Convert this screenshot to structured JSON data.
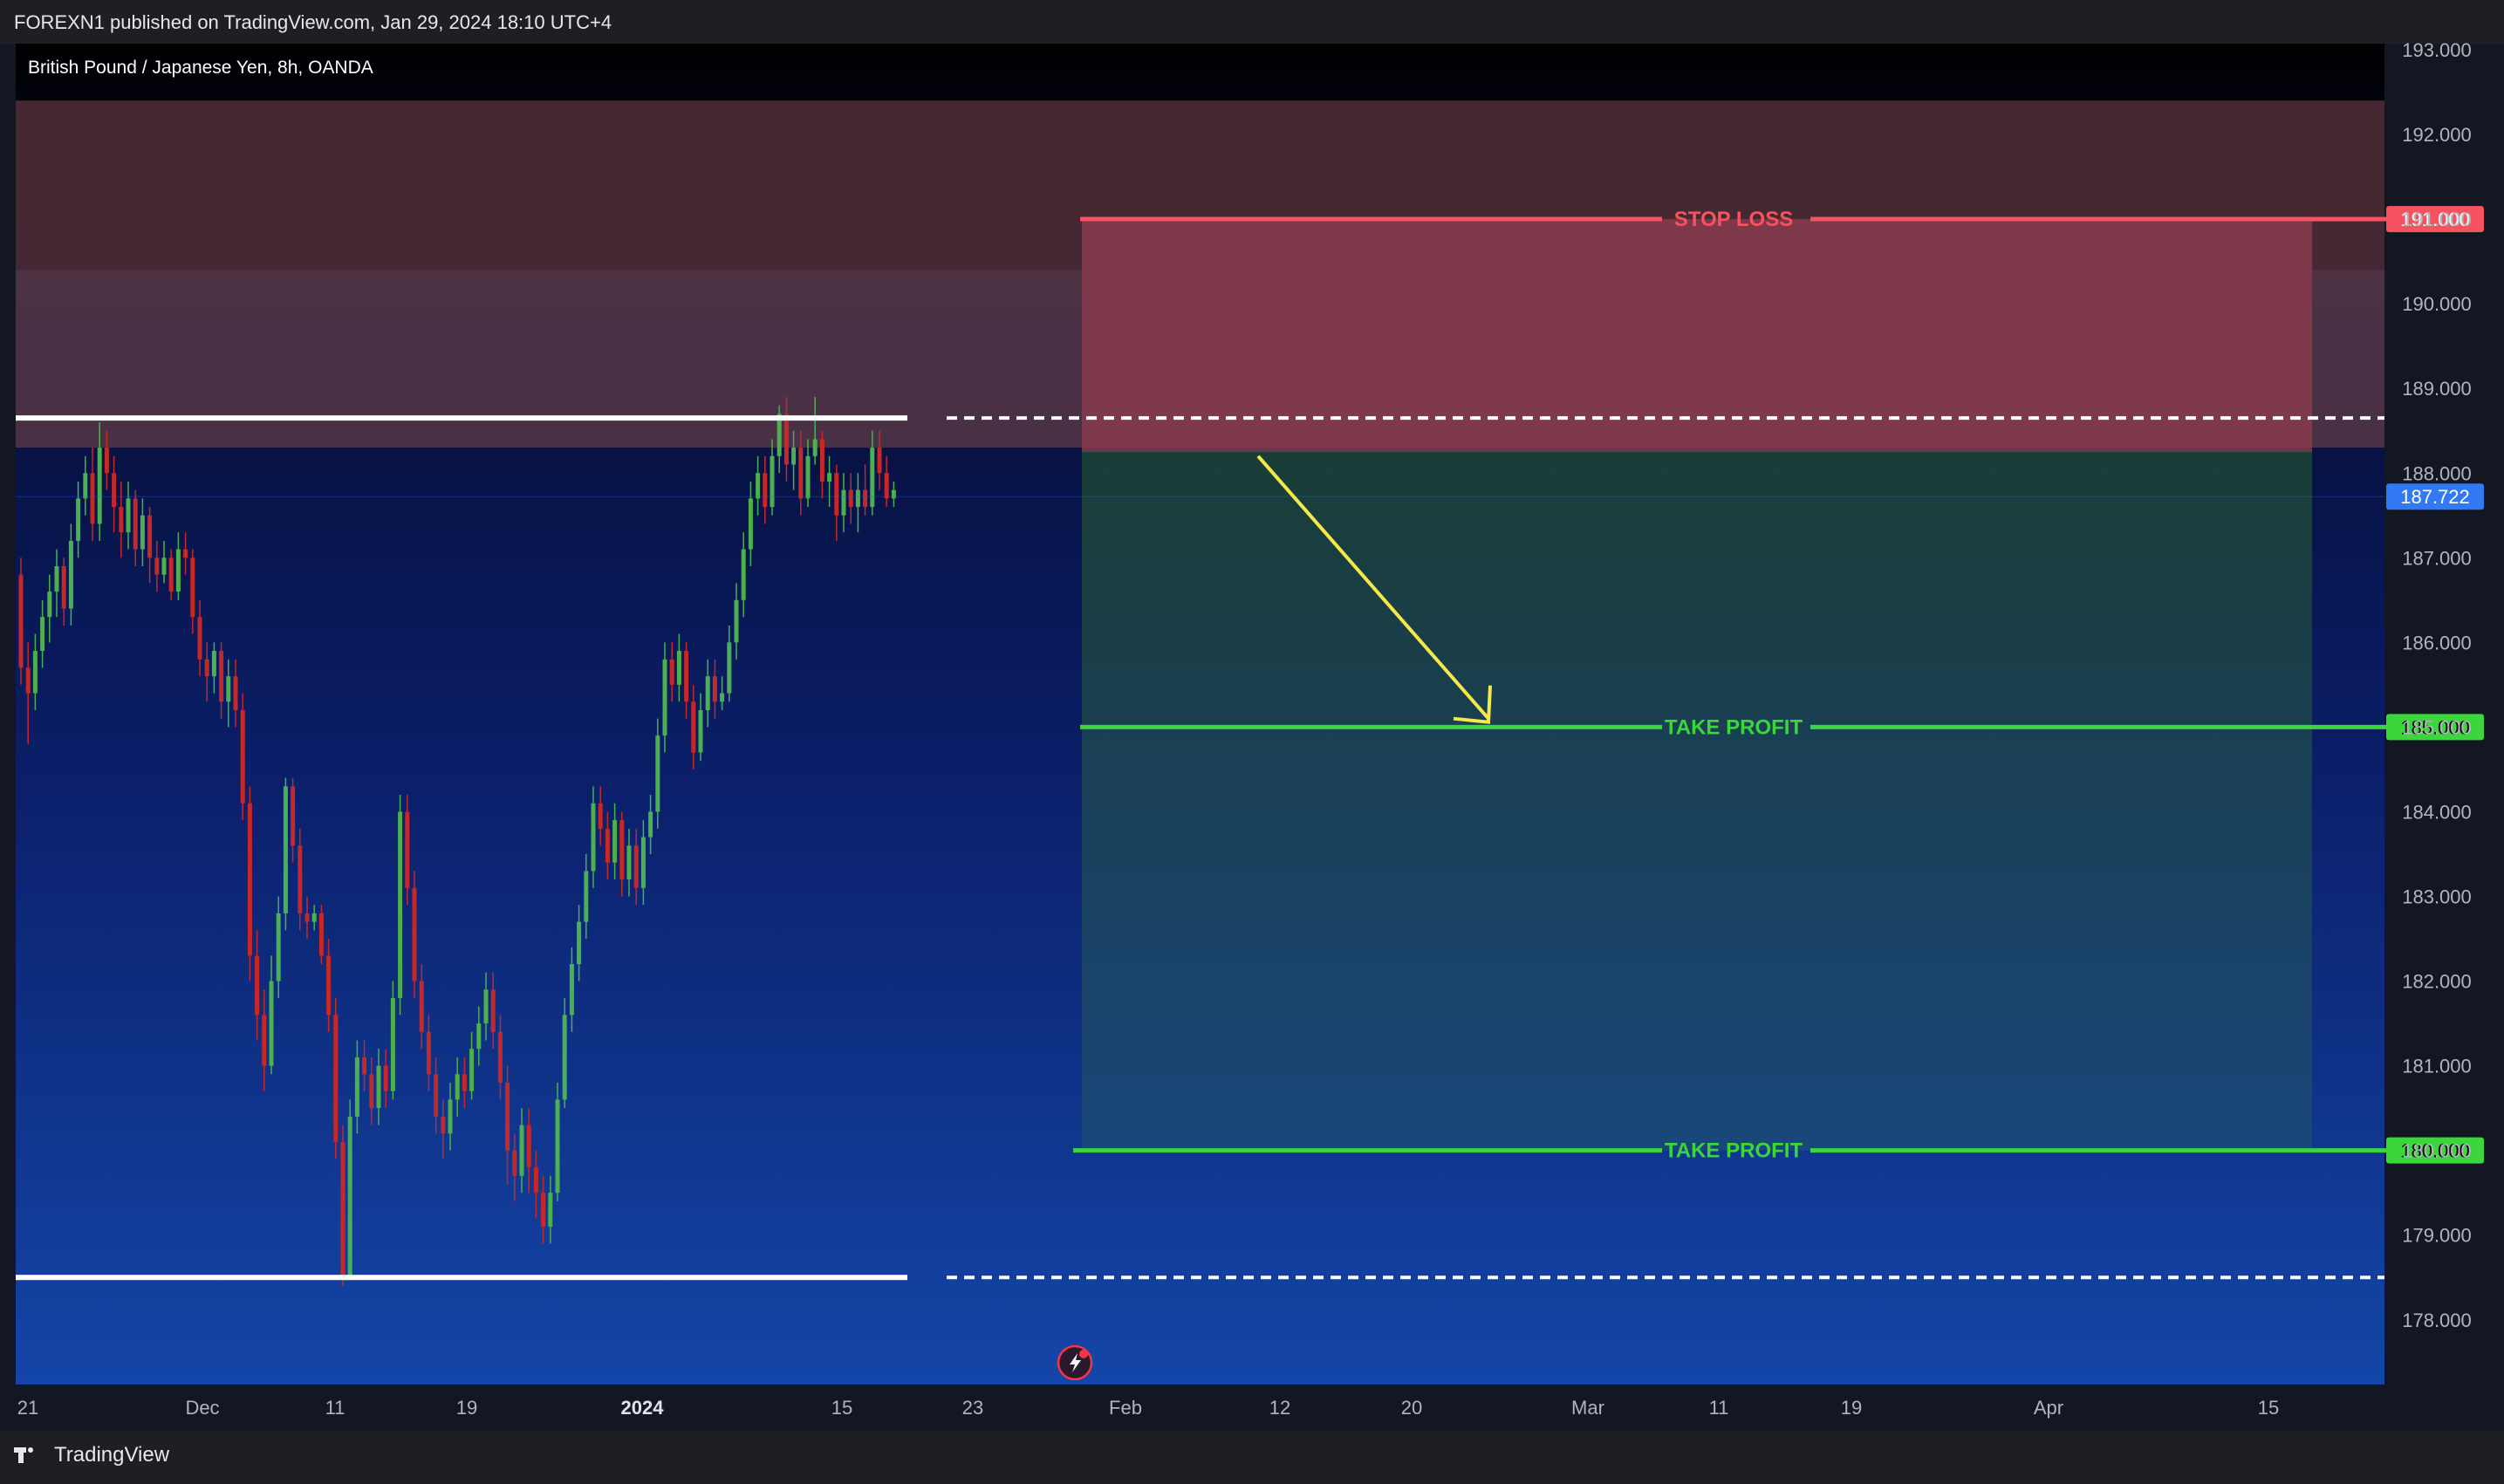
{
  "publish_text": "FOREXN1 published on TradingView.com, Jan 29, 2024 18:10 UTC+4",
  "brand": {
    "name": "TradingView",
    "logo_icon": "tradingview-logo-icon"
  },
  "symbol_title": "British Pound / Japanese Yen, 8h, OANDA",
  "chart_data": {
    "type": "candlestick",
    "symbol": "British Pound / Japanese Yen",
    "interval": "8h",
    "broker": "OANDA",
    "ylim": [
      177.3,
      193.0
    ],
    "y_ticks": [
      "193.000",
      "192.000",
      "191.000",
      "190.000",
      "189.000",
      "188.000",
      "187.000",
      "186.000",
      "185.000",
      "184.000",
      "183.000",
      "182.000",
      "181.000",
      "180.000",
      "179.000",
      "178.000"
    ],
    "x_ticks": [
      {
        "label": "21",
        "bold": false
      },
      {
        "label": "Dec",
        "bold": false
      },
      {
        "label": "11",
        "bold": false
      },
      {
        "label": "19",
        "bold": false
      },
      {
        "label": "2024",
        "bold": true
      },
      {
        "label": "15",
        "bold": false
      },
      {
        "label": "23",
        "bold": false
      },
      {
        "label": "Feb",
        "bold": false
      },
      {
        "label": "12",
        "bold": false
      },
      {
        "label": "20",
        "bold": false
      },
      {
        "label": "Mar",
        "bold": false
      },
      {
        "label": "11",
        "bold": false
      },
      {
        "label": "19",
        "bold": false
      },
      {
        "label": "Apr",
        "bold": false
      },
      {
        "label": "15",
        "bold": false
      }
    ],
    "last_price": "187.722",
    "zones": [
      {
        "name": "upper-supply-zone",
        "from": 190.0,
        "to": 192.4,
        "color": "#4a2a35"
      },
      {
        "name": "lower-supply-zone",
        "from": 188.3,
        "to": 190.4,
        "color": "#4d3344"
      }
    ],
    "resistance_level": 188.65,
    "support_level": 178.5,
    "levels": [
      {
        "label": "STOP LOSS",
        "price": "191.000",
        "value": 191.0,
        "color": "#f7525f"
      },
      {
        "label": "TAKE PROFIT",
        "price": "185.000",
        "value": 185.0,
        "color": "#3bd63b"
      },
      {
        "label": "TAKE PROFIT",
        "price": "180.000",
        "value": 180.0,
        "color": "#3bd63b"
      }
    ],
    "position": {
      "entry": 188.25,
      "stop": 191.0,
      "target": 180.0
    },
    "arrow": {
      "from": 188.2,
      "to": 185.1
    },
    "candles": [
      [
        186.8,
        185.7,
        187.0,
        185.5
      ],
      [
        185.7,
        185.4,
        186.0,
        184.8
      ],
      [
        185.4,
        185.9,
        186.1,
        185.2
      ],
      [
        185.9,
        186.3,
        186.5,
        185.7
      ],
      [
        186.3,
        186.6,
        186.8,
        186.0
      ],
      [
        186.6,
        186.9,
        187.1,
        186.3
      ],
      [
        186.9,
        186.4,
        187.0,
        186.2
      ],
      [
        186.4,
        187.2,
        187.4,
        186.2
      ],
      [
        187.2,
        187.7,
        187.9,
        187.0
      ],
      [
        187.7,
        188.0,
        188.2,
        187.5
      ],
      [
        188.0,
        187.4,
        188.3,
        187.2
      ],
      [
        187.4,
        188.3,
        188.6,
        187.2
      ],
      [
        188.3,
        188.0,
        188.5,
        187.8
      ],
      [
        188.0,
        187.6,
        188.2,
        187.3
      ],
      [
        187.6,
        187.3,
        187.9,
        187.0
      ],
      [
        187.3,
        187.7,
        187.9,
        187.1
      ],
      [
        187.7,
        187.1,
        187.8,
        186.9
      ],
      [
        187.1,
        187.5,
        187.7,
        186.9
      ],
      [
        187.5,
        187.0,
        187.6,
        186.7
      ],
      [
        187.0,
        186.8,
        187.2,
        186.6
      ],
      [
        186.8,
        187.0,
        187.2,
        186.7
      ],
      [
        187.0,
        186.6,
        187.1,
        186.5
      ],
      [
        186.6,
        187.1,
        187.3,
        186.5
      ],
      [
        187.1,
        187.0,
        187.3,
        186.8
      ],
      [
        187.0,
        186.3,
        187.1,
        186.1
      ],
      [
        186.3,
        185.8,
        186.5,
        185.6
      ],
      [
        185.8,
        185.6,
        186.0,
        185.3
      ],
      [
        185.6,
        185.9,
        186.0,
        185.4
      ],
      [
        185.9,
        185.3,
        186.0,
        185.1
      ],
      [
        185.3,
        185.6,
        185.8,
        185.0
      ],
      [
        185.6,
        185.2,
        185.8,
        185.0
      ],
      [
        185.2,
        184.1,
        185.4,
        183.9
      ],
      [
        184.1,
        182.3,
        184.3,
        182.0
      ],
      [
        182.3,
        181.6,
        182.6,
        181.3
      ],
      [
        181.6,
        181.0,
        181.9,
        180.7
      ],
      [
        181.0,
        182.0,
        182.3,
        180.9
      ],
      [
        182.0,
        182.8,
        183.0,
        181.8
      ],
      [
        182.8,
        184.3,
        184.4,
        182.6
      ],
      [
        184.3,
        183.6,
        184.4,
        183.4
      ],
      [
        183.6,
        182.8,
        183.8,
        182.6
      ],
      [
        182.8,
        182.7,
        183.0,
        182.5
      ],
      [
        182.7,
        182.8,
        182.9,
        182.6
      ],
      [
        182.8,
        182.3,
        182.9,
        182.2
      ],
      [
        182.3,
        181.6,
        182.5,
        181.4
      ],
      [
        181.6,
        180.1,
        181.8,
        179.9
      ],
      [
        180.1,
        178.5,
        180.3,
        178.4
      ],
      [
        178.5,
        180.4,
        180.6,
        178.5
      ],
      [
        180.4,
        181.1,
        181.3,
        180.2
      ],
      [
        181.1,
        180.9,
        181.3,
        180.7
      ],
      [
        180.9,
        180.5,
        181.1,
        180.3
      ],
      [
        180.5,
        181.0,
        181.2,
        180.3
      ],
      [
        181.0,
        180.7,
        181.2,
        180.5
      ],
      [
        180.7,
        181.8,
        182.0,
        180.6
      ],
      [
        181.8,
        184.0,
        184.2,
        181.6
      ],
      [
        184.0,
        183.1,
        184.2,
        182.9
      ],
      [
        183.1,
        182.0,
        183.3,
        181.8
      ],
      [
        182.0,
        181.4,
        182.2,
        181.2
      ],
      [
        181.4,
        180.9,
        181.6,
        180.7
      ],
      [
        180.9,
        180.4,
        181.1,
        180.2
      ],
      [
        180.4,
        180.2,
        180.6,
        179.9
      ],
      [
        180.2,
        180.6,
        180.8,
        180.0
      ],
      [
        180.6,
        180.9,
        181.1,
        180.4
      ],
      [
        180.9,
        180.7,
        181.1,
        180.5
      ],
      [
        180.7,
        181.2,
        181.4,
        180.6
      ],
      [
        181.2,
        181.5,
        181.7,
        181.0
      ],
      [
        181.5,
        181.9,
        182.1,
        181.3
      ],
      [
        181.9,
        181.4,
        182.1,
        181.2
      ],
      [
        181.4,
        180.8,
        181.6,
        180.6
      ],
      [
        180.8,
        180.0,
        181.0,
        179.6
      ],
      [
        180.0,
        179.7,
        180.2,
        179.4
      ],
      [
        179.7,
        180.3,
        180.5,
        179.5
      ],
      [
        180.3,
        179.8,
        180.5,
        179.5
      ],
      [
        179.8,
        179.5,
        180.0,
        179.2
      ],
      [
        179.5,
        179.1,
        179.7,
        178.9
      ],
      [
        179.1,
        179.5,
        179.7,
        178.9
      ],
      [
        179.5,
        180.6,
        180.8,
        179.4
      ],
      [
        180.6,
        181.6,
        181.8,
        180.5
      ],
      [
        181.6,
        182.2,
        182.4,
        181.4
      ],
      [
        182.2,
        182.7,
        182.9,
        182.0
      ],
      [
        182.7,
        183.3,
        183.5,
        182.5
      ],
      [
        183.3,
        184.1,
        184.3,
        183.1
      ],
      [
        184.1,
        183.8,
        184.3,
        183.6
      ],
      [
        183.8,
        183.4,
        184.0,
        183.2
      ],
      [
        183.4,
        183.9,
        184.1,
        183.2
      ],
      [
        183.9,
        183.2,
        184.0,
        183.0
      ],
      [
        183.2,
        183.6,
        183.8,
        183.0
      ],
      [
        183.6,
        183.1,
        183.8,
        182.9
      ],
      [
        183.1,
        183.7,
        183.9,
        182.9
      ],
      [
        183.7,
        184.0,
        184.2,
        183.5
      ],
      [
        184.0,
        184.9,
        185.1,
        183.8
      ],
      [
        184.9,
        185.8,
        186.0,
        184.7
      ],
      [
        185.8,
        185.5,
        186.0,
        185.3
      ],
      [
        185.5,
        185.9,
        186.1,
        185.3
      ],
      [
        185.9,
        185.3,
        186.0,
        185.1
      ],
      [
        185.3,
        184.7,
        185.5,
        184.5
      ],
      [
        184.7,
        185.2,
        185.4,
        184.6
      ],
      [
        185.2,
        185.6,
        185.8,
        185.0
      ],
      [
        185.6,
        185.3,
        185.8,
        185.1
      ],
      [
        185.3,
        185.4,
        185.6,
        185.2
      ],
      [
        185.4,
        186.0,
        186.2,
        185.3
      ],
      [
        186.0,
        186.5,
        186.7,
        185.8
      ],
      [
        186.5,
        187.1,
        187.3,
        186.3
      ],
      [
        187.1,
        187.7,
        187.9,
        186.9
      ],
      [
        187.7,
        188.0,
        188.2,
        187.5
      ],
      [
        188.0,
        187.6,
        188.2,
        187.4
      ],
      [
        187.6,
        188.2,
        188.4,
        187.5
      ],
      [
        188.2,
        188.7,
        188.8,
        188.0
      ],
      [
        188.7,
        188.1,
        188.9,
        187.9
      ],
      [
        188.1,
        188.3,
        188.5,
        187.8
      ],
      [
        188.3,
        187.7,
        188.5,
        187.5
      ],
      [
        187.7,
        188.2,
        188.4,
        187.6
      ],
      [
        188.2,
        188.4,
        188.9,
        188.1
      ],
      [
        188.4,
        187.9,
        188.5,
        187.7
      ],
      [
        187.9,
        188.0,
        188.2,
        187.6
      ],
      [
        188.0,
        187.5,
        188.1,
        187.2
      ],
      [
        187.5,
        187.8,
        188.0,
        187.3
      ],
      [
        187.8,
        187.6,
        188.0,
        187.4
      ],
      [
        187.6,
        187.8,
        188.0,
        187.3
      ],
      [
        187.8,
        187.6,
        188.1,
        187.5
      ],
      [
        187.6,
        188.3,
        188.5,
        187.5
      ],
      [
        188.3,
        188.0,
        188.5,
        187.8
      ],
      [
        188.0,
        187.7,
        188.2,
        187.6
      ],
      [
        187.7,
        187.8,
        187.9,
        187.6
      ]
    ]
  }
}
